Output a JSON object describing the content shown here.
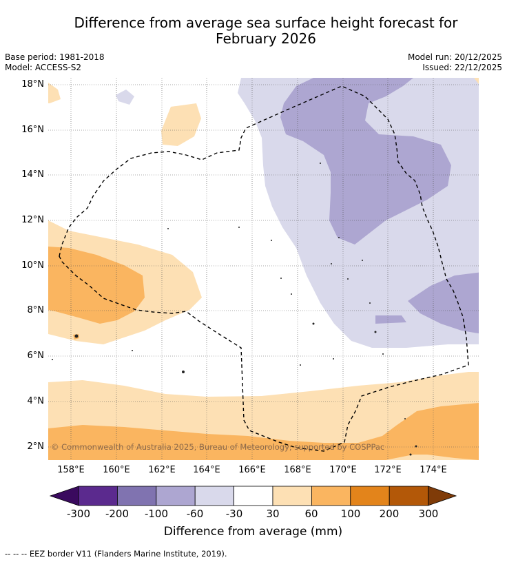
{
  "title_line1": "Difference from average sea surface height forecast for",
  "title_line2": "February 2026",
  "meta": {
    "base_period": "Base period: 1981-2018",
    "model": "Model: ACCESS-S2",
    "model_run": "Model run: 20/12/2025",
    "issued": "Issued: 22/12/2025"
  },
  "map": {
    "lat_labels": [
      "18°N",
      "16°N",
      "14°N",
      "12°N",
      "10°N",
      "8°N",
      "6°N",
      "4°N",
      "2°N"
    ],
    "lon_labels": [
      "158°E",
      "160°E",
      "162°E",
      "164°E",
      "166°E",
      "168°E",
      "170°E",
      "172°E",
      "174°E"
    ],
    "copyright": "© Commonwealth of Australia 2025, Bureau of Meteorology, supported by COSPPac"
  },
  "colorbar": {
    "ticks": [
      "-300",
      "-200",
      "-100",
      "-60",
      "-30",
      "30",
      "60",
      "100",
      "200",
      "300"
    ],
    "colors": [
      "#3a0a5e",
      "#5b2a8e",
      "#8073b0",
      "#ada6d1",
      "#d9d9eb",
      "#ffffff",
      "#fde0b4",
      "#fab560",
      "#e3841b",
      "#b35808",
      "#7f3b08"
    ],
    "label": "Difference from average (mm)"
  },
  "footnote": "--  --  -- EEZ border V11 (Flanders Marine Institute, 2019)."
}
